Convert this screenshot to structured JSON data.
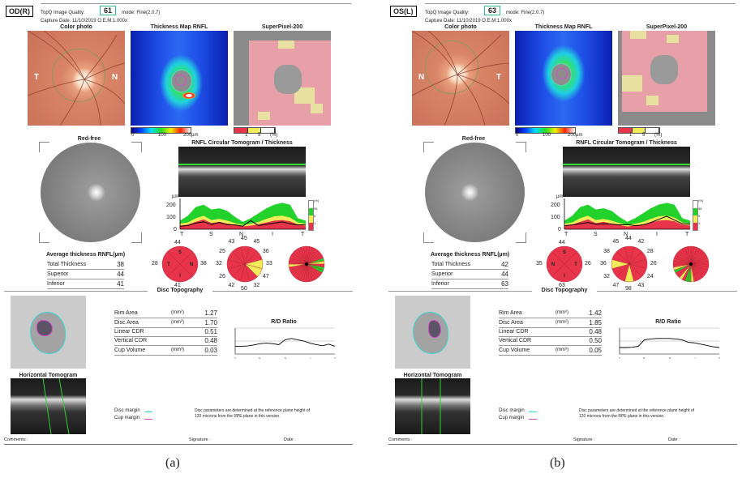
{
  "labels": {
    "quality": "TopQ Image Quality:",
    "color_photo": "Color photo",
    "thickness_map": "Thickness Map RNFL",
    "superpixel": "SuperPixel-200",
    "red_free": "Red-free",
    "circular": "RNFL Circular Tomogram / Thickness",
    "avg_title": "Average thickness RNFL(µm)",
    "avg_rows": [
      "Total Thickness",
      "Superior",
      "Inferior"
    ],
    "disc_topography": "Disc Topography",
    "horizontal": "Horizontal Tomogram",
    "rd_ratio": "R/D Ratio",
    "colorbar_ticks": [
      "0",
      "100",
      "200µm"
    ],
    "superpixel_ticks": [
      "1",
      "5",
      "(%)"
    ],
    "plot_unit": "µm",
    "plot_yticks": [
      "200",
      "100",
      "0"
    ],
    "plot_xticks": [
      "T",
      "S",
      "N",
      "I",
      "T"
    ],
    "percentile_legend": [
      "(%)",
      "95",
      "5",
      "1"
    ],
    "disc_rows": [
      {
        "label": "Rim Area",
        "unit": "(mm²)"
      },
      {
        "label": "Disc Area",
        "unit": "(mm²)"
      },
      {
        "label": "Linear CDR",
        "unit": ""
      },
      {
        "label": "Vertical CDR",
        "unit": ""
      },
      {
        "label": "Cup Volume",
        "unit": "(mm³)"
      }
    ],
    "disc_margin": "Disc margin",
    "cup_margin": "Cup margin",
    "note_line1": "Disc parameters are determined at the reference plane height of",
    "note_line2": "120 microns from the RPE plane in this version.",
    "comments": "Comments :",
    "signature": "Signature :",
    "date": "Date :"
  },
  "colors": {
    "red": "#e8344a",
    "yellow": "#f2ec5a",
    "green": "#22d12a",
    "disc_margin": "#39d6d0",
    "cup_margin": "#d64bc8",
    "quality_box": "#2fbf8f"
  },
  "thickness_profile_normals": {
    "p95": [
      70,
      110,
      180,
      200,
      160,
      170,
      150,
      100,
      60,
      90,
      130,
      170,
      200,
      215,
      200,
      90,
      70
    ],
    "p5": [
      45,
      55,
      90,
      110,
      75,
      85,
      70,
      50,
      35,
      45,
      60,
      85,
      105,
      110,
      95,
      55,
      45
    ],
    "p1": [
      30,
      38,
      60,
      80,
      50,
      60,
      45,
      35,
      22,
      30,
      40,
      55,
      70,
      75,
      65,
      38,
      30
    ]
  },
  "panels": [
    {
      "figure_label": "(a)",
      "eye": "OD(R)",
      "quality_value": "61",
      "mode": "mode: Fine(2.0.7)",
      "capture": "Capture Date: 11/10/2019   O.E.M:1.000x",
      "photo_left": "T",
      "photo_right": "N",
      "avg_values": [
        "38",
        "44",
        "41"
      ],
      "quadrants": {
        "top": "44",
        "left": "28",
        "right": "38",
        "bottom": "41",
        "letters": [
          "S",
          "N",
          "I",
          "T"
        ]
      },
      "clock_hours": [
        "45",
        "45",
        "36",
        "33",
        "47",
        "32",
        "50",
        "42",
        "26",
        "32",
        "25",
        "43"
      ],
      "clock_status": [
        "r",
        "r",
        "r",
        "y",
        "y",
        "r",
        "r",
        "r",
        "r",
        "r",
        "r",
        "r"
      ],
      "sector36_status": [
        "r",
        "r",
        "r",
        "r",
        "r",
        "r",
        "r",
        "g",
        "y",
        "r",
        "g",
        "g",
        "r",
        "r",
        "r",
        "r",
        "r",
        "r",
        "r",
        "r",
        "r",
        "r",
        "r",
        "r",
        "r",
        "r",
        "y",
        "r",
        "r",
        "r",
        "r",
        "r",
        "r",
        "r",
        "r",
        "r"
      ],
      "thickness_profile": [
        25,
        30,
        50,
        60,
        40,
        55,
        38,
        35,
        25,
        70,
        30,
        40,
        50,
        60,
        45,
        35,
        38
      ],
      "disc_values": [
        "1.27",
        "1.70",
        "0.51",
        "0.48",
        "0.03"
      ],
      "rd_ratio_profile": [
        0.3,
        0.3,
        0.31,
        0.35,
        0.4,
        0.42,
        0.4,
        0.36,
        0.55,
        0.6,
        0.55,
        0.5,
        0.42,
        0.36,
        0.32,
        0.38,
        0.3
      ]
    },
    {
      "figure_label": "(b)",
      "eye": "OS(L)",
      "quality_value": "63",
      "mode": "mode: Fine(2.0.7)",
      "capture": "Capture Date: 11/10/2019   O.E.M:1.000x",
      "photo_left": "N",
      "photo_right": "T",
      "avg_values": [
        "42",
        "44",
        "63"
      ],
      "quadrants": {
        "top": "44",
        "left": "35",
        "right": "26",
        "bottom": "63",
        "letters": [
          "S",
          "T",
          "I",
          "N"
        ]
      },
      "clock_hours": [
        "44",
        "42",
        "28",
        "26",
        "24",
        "43",
        "98",
        "47",
        "32",
        "36",
        "38",
        "45"
      ],
      "clock_status": [
        "r",
        "r",
        "r",
        "r",
        "r",
        "r",
        "y",
        "r",
        "r",
        "y",
        "r",
        "r"
      ],
      "sector36_status": [
        "r",
        "r",
        "r",
        "r",
        "r",
        "r",
        "r",
        "r",
        "r",
        "r",
        "r",
        "r",
        "r",
        "r",
        "r",
        "r",
        "r",
        "y",
        "g",
        "g",
        "r",
        "y",
        "r",
        "r",
        "g",
        "y",
        "r",
        "r",
        "r",
        "r",
        "r",
        "r",
        "r",
        "r",
        "r",
        "r"
      ],
      "thickness_profile": [
        30,
        35,
        45,
        55,
        40,
        45,
        42,
        35,
        38,
        30,
        35,
        55,
        80,
        105,
        75,
        45,
        40
      ],
      "disc_values": [
        "1.42",
        "1.85",
        "0.48",
        "0.50",
        "0.05"
      ],
      "rd_ratio_profile": [
        0.25,
        0.25,
        0.26,
        0.3,
        0.55,
        0.58,
        0.6,
        0.6,
        0.6,
        0.58,
        0.55,
        0.45,
        0.43,
        0.38,
        0.33,
        0.28,
        0.25
      ]
    }
  ]
}
